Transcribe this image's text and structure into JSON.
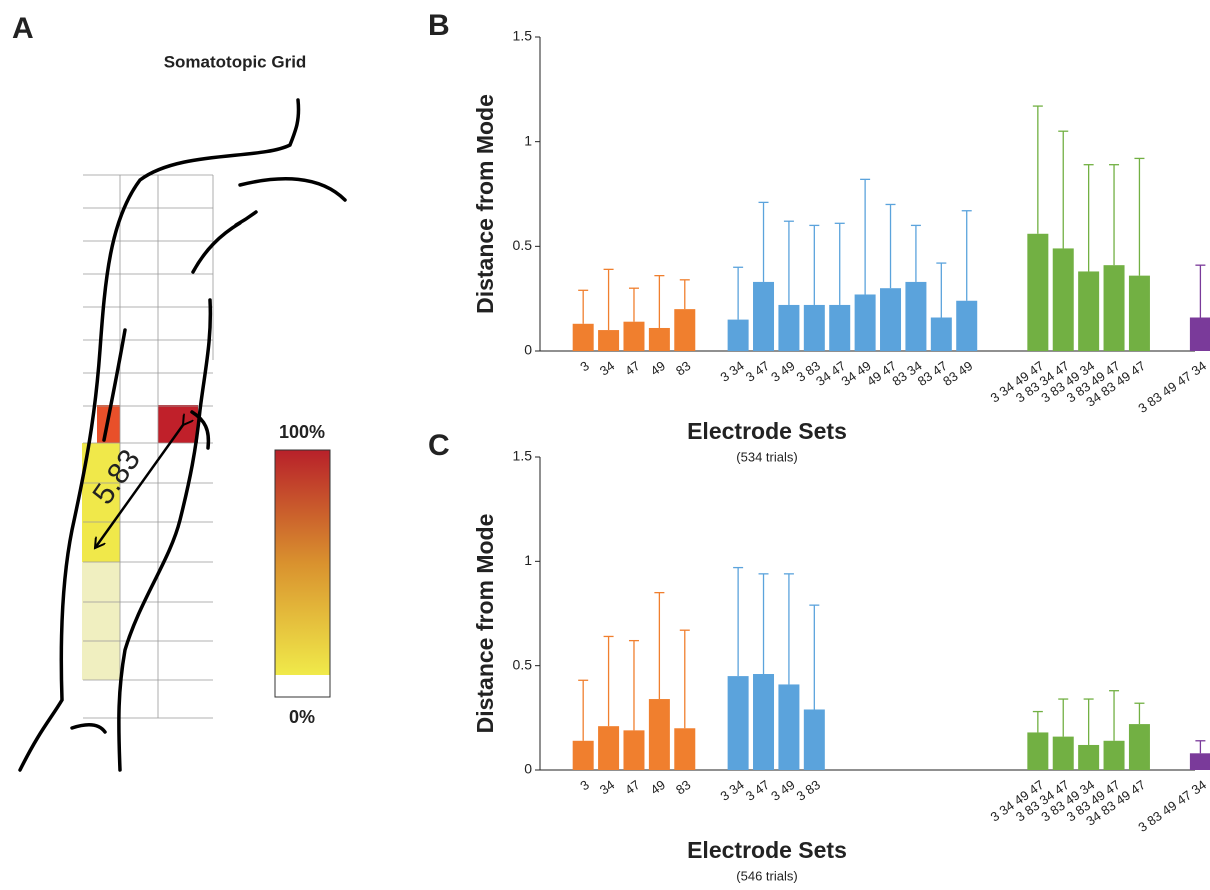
{
  "panel_a": {
    "label": "A",
    "title": "Somatotopic Grid",
    "distance": "5.83",
    "scale_max": "100%",
    "scale_min": "0%"
  },
  "chart_data": [
    {
      "type": "bar",
      "panel": "B",
      "y_label": "Distance from Mode",
      "x_label": "Electrode Sets",
      "note": "(534 trials)",
      "ylim": [
        0,
        1.5
      ],
      "yticks": [
        0,
        0.5,
        1,
        1.5
      ],
      "series": [
        {
          "color": "#f07f2e",
          "categories": [
            "3",
            "34",
            "47",
            "49",
            "83"
          ],
          "values": [
            0.13,
            0.1,
            0.14,
            0.11,
            0.2
          ],
          "errors": [
            0.16,
            0.29,
            0.16,
            0.25,
            0.14
          ]
        },
        {
          "color": "#5ba3dc",
          "categories": [
            "3 34",
            "3 47",
            "3 49",
            "3 83",
            "34 47",
            "34 49",
            "49 47",
            "83 34",
            "83 47",
            "83 49"
          ],
          "values": [
            0.15,
            0.33,
            0.22,
            0.22,
            0.22,
            0.27,
            0.3,
            0.33,
            0.16,
            0.24
          ],
          "errors": [
            0.25,
            0.38,
            0.4,
            0.38,
            0.39,
            0.55,
            0.4,
            0.27,
            0.26,
            0.43
          ]
        },
        {
          "color": "#72b043",
          "categories": [
            "3 34 49 47",
            "3 83 34 47",
            "3 83 49 34",
            "3 83 49 47",
            "34 83 49 47"
          ],
          "values": [
            0.56,
            0.49,
            0.38,
            0.41,
            0.36
          ],
          "errors": [
            0.61,
            0.56,
            0.51,
            0.48,
            0.56
          ]
        },
        {
          "color": "#7a3a9a",
          "categories": [
            "3 83 49 47 34"
          ],
          "values": [
            0.16
          ],
          "errors": [
            0.25
          ]
        }
      ]
    },
    {
      "type": "bar",
      "panel": "C",
      "y_label": "Distance from Mode",
      "x_label": "Electrode Sets",
      "note": "(546 trials)",
      "ylim": [
        0,
        1.5
      ],
      "yticks": [
        0,
        0.5,
        1,
        1.5
      ],
      "series": [
        {
          "color": "#f07f2e",
          "categories": [
            "3",
            "34",
            "47",
            "49",
            "83"
          ],
          "values": [
            0.14,
            0.21,
            0.19,
            0.34,
            0.2
          ],
          "errors": [
            0.29,
            0.43,
            0.43,
            0.51,
            0.47
          ]
        },
        {
          "color": "#5ba3dc",
          "categories": [
            "3 34",
            "3 47",
            "3 49",
            "3 83"
          ],
          "values": [
            0.45,
            0.46,
            0.41,
            0.29
          ],
          "errors": [
            0.52,
            0.48,
            0.53,
            0.5
          ]
        },
        {
          "color": "#72b043",
          "categories": [
            "3 34 49 47",
            "3 83 34 47",
            "3 83 49 34",
            "3 83 49 47",
            "34 83 49 47"
          ],
          "values": [
            0.18,
            0.16,
            0.12,
            0.14,
            0.22
          ],
          "errors": [
            0.1,
            0.18,
            0.22,
            0.24,
            0.1
          ]
        },
        {
          "color": "#7a3a9a",
          "categories": [
            "3 83 49 47 34"
          ],
          "values": [
            0.08
          ],
          "errors": [
            0.06
          ]
        }
      ]
    }
  ]
}
